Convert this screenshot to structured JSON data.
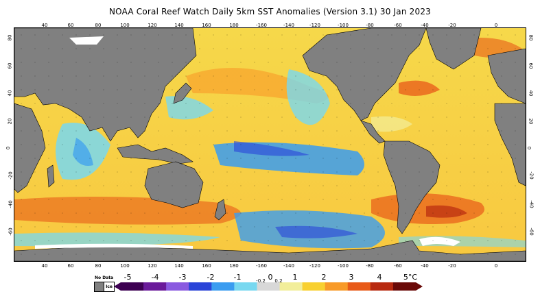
{
  "title": "NOAA Coral Reef Watch Daily 5km SST Anomalies (Version 3.1)  30 Jan 2023",
  "map": {
    "projection": "equirectangular",
    "center_longitude": 180,
    "land_color": "#808080",
    "coastline_color": "#000000"
  },
  "axes": {
    "longitude_ticks_top": [
      "40",
      "60",
      "80",
      "100",
      "120",
      "140",
      "160",
      "180",
      "-160",
      "-140",
      "-120",
      "-100",
      "-80",
      "-60",
      "-40",
      "-20",
      "0"
    ],
    "longitude_ticks_bottom": [
      "40",
      "60",
      "80",
      "100",
      "120",
      "140",
      "160",
      "180",
      "-160",
      "-140",
      "-120",
      "-100",
      "-80",
      "-60",
      "-40",
      "-20",
      "0"
    ],
    "latitude_ticks_left": [
      "80",
      "60",
      "40",
      "20",
      "0",
      "-20",
      "-40",
      "-60"
    ],
    "latitude_ticks_right": [
      "80",
      "60",
      "40",
      "20",
      "0",
      "-20",
      "-40",
      "-60"
    ]
  },
  "legend": {
    "nodata_label": "No Data",
    "ice_label": "Ice",
    "nodata_color": "#808080",
    "ice_color": "#ffffff",
    "labels": [
      "-5",
      "-4",
      "-3",
      "-2",
      "-1",
      "-0.2",
      "0",
      "0.2",
      "1",
      "2",
      "3",
      "4",
      "5°C"
    ],
    "colors": [
      "#3d0052",
      "#6a1a9a",
      "#8a5ae0",
      "#2a44d8",
      "#3a9cf0",
      "#78d8f0",
      "#d8d8d8",
      "#f2ee9a",
      "#f8d030",
      "#f89a28",
      "#e85a18",
      "#b82a10",
      "#6a0a08"
    ]
  }
}
